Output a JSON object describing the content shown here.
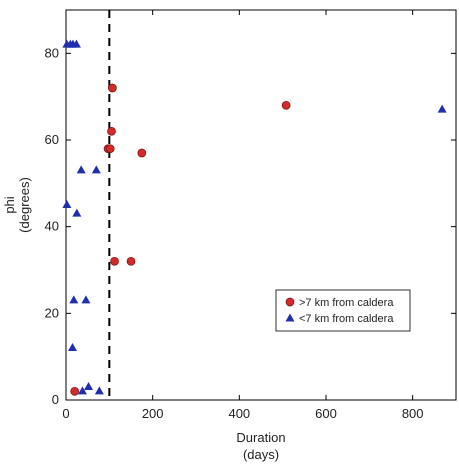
{
  "chart_data": {
    "type": "scatter",
    "title": "",
    "xlabel": [
      "Duration",
      "(days)"
    ],
    "ylabel": [
      "phi",
      "(degrees)"
    ],
    "xlim": [
      0,
      900
    ],
    "ylim": [
      0,
      90
    ],
    "xticks": [
      0,
      200,
      400,
      600,
      800
    ],
    "yticks": [
      0,
      20,
      40,
      60,
      80
    ],
    "grid": false,
    "legend_position": "bottom-right",
    "reference_line": {
      "x": 100,
      "style": "dashed",
      "color": "#000000"
    },
    "series": [
      {
        "name": ">7 km from caldera",
        "marker": "circle",
        "color": "#d42a2a",
        "points": [
          {
            "x": 20,
            "y": 2
          },
          {
            "x": 97,
            "y": 58
          },
          {
            "x": 102,
            "y": 58
          },
          {
            "x": 105,
            "y": 62
          },
          {
            "x": 107,
            "y": 72
          },
          {
            "x": 112,
            "y": 32
          },
          {
            "x": 150,
            "y": 32
          },
          {
            "x": 175,
            "y": 57
          },
          {
            "x": 508,
            "y": 68
          }
        ]
      },
      {
        "name": "<7 km from caldera",
        "marker": "triangle",
        "color": "#1f2fb0",
        "points": [
          {
            "x": 2,
            "y": 82
          },
          {
            "x": 10,
            "y": 82
          },
          {
            "x": 16,
            "y": 82
          },
          {
            "x": 24,
            "y": 82
          },
          {
            "x": 2,
            "y": 45
          },
          {
            "x": 25,
            "y": 43
          },
          {
            "x": 35,
            "y": 53
          },
          {
            "x": 70,
            "y": 53
          },
          {
            "x": 18,
            "y": 23
          },
          {
            "x": 46,
            "y": 23
          },
          {
            "x": 15,
            "y": 12
          },
          {
            "x": 38,
            "y": 2
          },
          {
            "x": 52,
            "y": 3
          },
          {
            "x": 77,
            "y": 2
          },
          {
            "x": 868,
            "y": 67
          }
        ]
      }
    ]
  }
}
